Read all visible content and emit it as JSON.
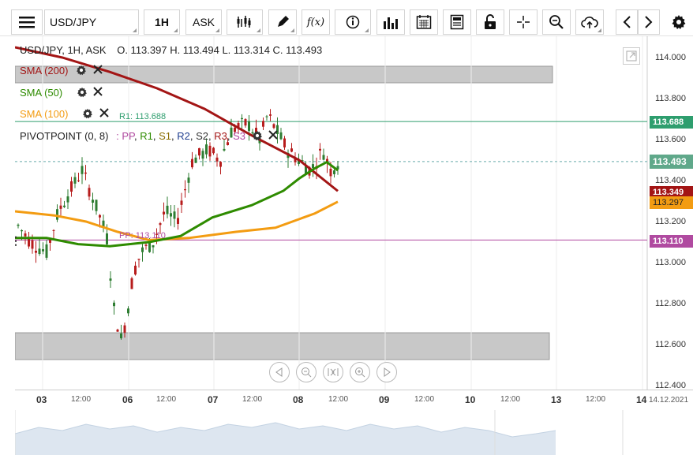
{
  "toolbar": {
    "symbol": "USD/JPY",
    "timeframe": "1H",
    "price_type": "ASK",
    "fx_label": "f(x)"
  },
  "chart_header": {
    "instrument": "USD/JPY, 1H, ASK",
    "ohlc": "O. 113.397 H. 113.494 L. 113.314 C. 113.493"
  },
  "indicators": [
    {
      "label": "SMA (200)",
      "color": "#a31515"
    },
    {
      "label": "SMA (50)",
      "color": "#2e8b00"
    },
    {
      "label": "SMA (100)",
      "color": "#f39c12"
    }
  ],
  "pivot": {
    "label": "PIVOTPOINT (0, 8)",
    "separator": ": ",
    "levels": [
      "PP",
      "R1",
      "S1",
      "R2",
      "S2",
      "R3",
      "S3"
    ],
    "r1_label": "R1: 113.688",
    "pp_label": "PP: 113.110"
  },
  "price_axis": {
    "ticks": [
      "114.000",
      "113.800",
      "113.600",
      "113.400",
      "113.200",
      "113.000",
      "112.800",
      "112.600",
      "112.400"
    ],
    "tags": {
      "r1": "113.688",
      "current": "113.493",
      "sma200": "113.349",
      "sma100": "113.297",
      "pp": "113.110"
    }
  },
  "time_axis": {
    "labels": [
      {
        "text": "03",
        "day": true
      },
      {
        "text": "12:00",
        "day": false
      },
      {
        "text": "06",
        "day": true
      },
      {
        "text": "12:00",
        "day": false
      },
      {
        "text": "07",
        "day": true
      },
      {
        "text": "12:00",
        "day": false
      },
      {
        "text": "08",
        "day": true
      },
      {
        "text": "12:00",
        "day": false
      },
      {
        "text": "09",
        "day": true
      },
      {
        "text": "12:00",
        "day": false
      },
      {
        "text": "10",
        "day": true
      },
      {
        "text": "12:00",
        "day": false
      },
      {
        "text": "13",
        "day": true
      },
      {
        "text": "12:00",
        "day": false
      },
      {
        "text": "14",
        "day": true
      }
    ],
    "date_end": "14.12.2021"
  },
  "colors": {
    "sma200": "#a31515",
    "sma50": "#2e8b00",
    "sma100": "#f39c12",
    "r1": "#2e9e6e",
    "pp": "#b04aa0",
    "candle_up": "#2e7d32",
    "candle_down": "#b71c1c",
    "zone": "#c8c8c8"
  }
}
